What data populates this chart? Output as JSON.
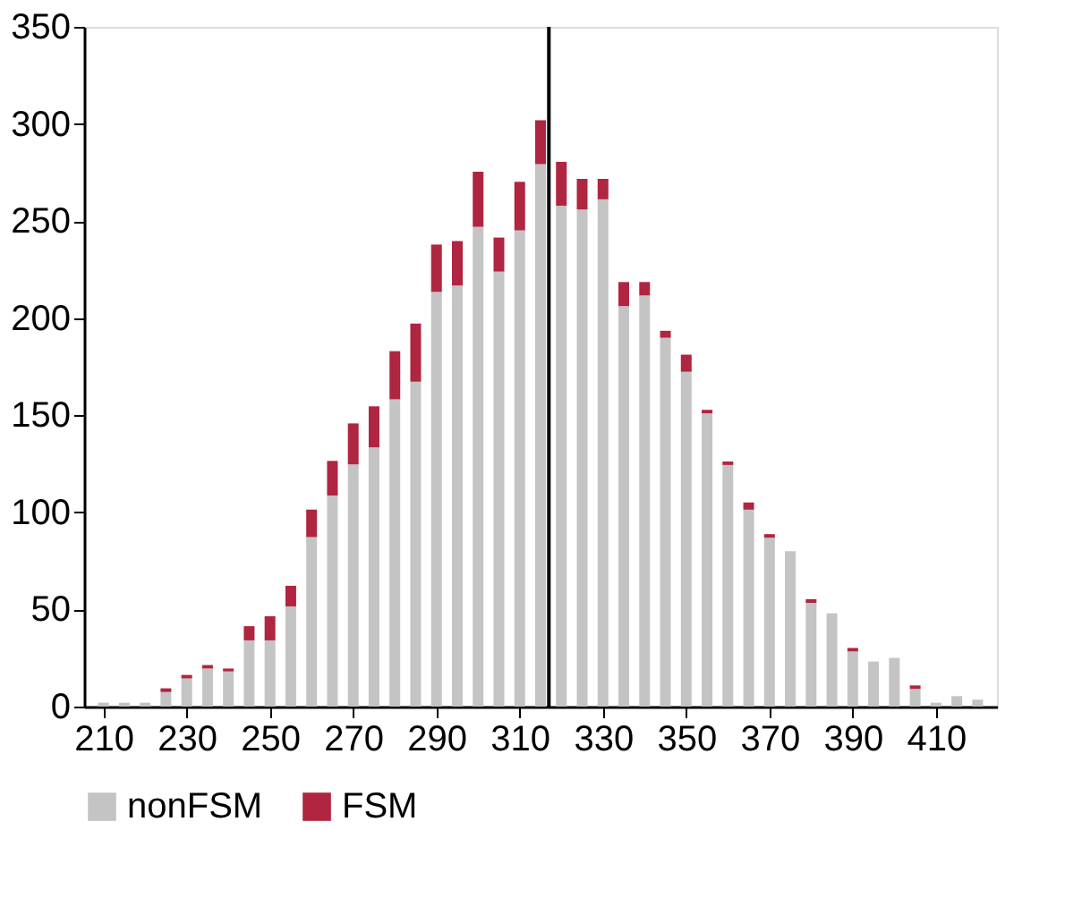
{
  "chart_data": {
    "type": "bar",
    "stacked": true,
    "x": [
      210,
      215,
      220,
      225,
      230,
      235,
      240,
      245,
      250,
      255,
      260,
      265,
      270,
      275,
      280,
      285,
      290,
      295,
      300,
      305,
      310,
      315,
      320,
      325,
      330,
      335,
      340,
      345,
      350,
      355,
      360,
      365,
      370,
      375,
      380,
      385,
      390,
      395,
      400,
      405,
      410,
      415,
      420
    ],
    "series": [
      {
        "name": "nonFSM",
        "color": "#c4c4c4",
        "values": [
          2,
          2,
          2,
          7.5,
          14.5,
          19.6,
          18.1,
          34.1,
          34.1,
          51.6,
          87.3,
          108.7,
          124.7,
          133.5,
          158.2,
          167.3,
          213.5,
          216.8,
          247,
          224,
          245.2,
          279.3,
          257.9,
          256,
          261.2,
          206.2,
          211.7,
          189.9,
          172.4,
          151,
          124.4,
          101.4,
          87,
          80,
          53.4,
          48,
          28.4,
          23.2,
          25.1,
          9.1,
          2,
          5.4,
          3.6
        ]
      },
      {
        "name": "FSM",
        "color": "#b0253f",
        "values": [
          0,
          0,
          0,
          1.9,
          1.8,
          1.8,
          1.5,
          7.3,
          12.4,
          10.6,
          14.1,
          17.8,
          21.1,
          21.1,
          24.8,
          29.9,
          24.4,
          22.9,
          28.4,
          17.5,
          25,
          22.6,
          22.6,
          15.7,
          10.5,
          12.4,
          6.9,
          3.6,
          8.8,
          1.8,
          1.8,
          3.7,
          1.8,
          0,
          1.9,
          0,
          1.8,
          0,
          0,
          1.8,
          0,
          0,
          0
        ]
      }
    ],
    "xlim": [
      207.5,
      422.5
    ],
    "xticks": [
      210,
      230,
      250,
      270,
      290,
      310,
      330,
      350,
      370,
      390,
      410
    ],
    "ylim": [
      0,
      350
    ],
    "yticks": [
      0,
      50,
      100,
      150,
      200,
      250,
      300,
      350
    ],
    "ref_lines": [
      {
        "axis": "x",
        "value": 317,
        "color": "#000000"
      }
    ],
    "legend": "bottom"
  }
}
